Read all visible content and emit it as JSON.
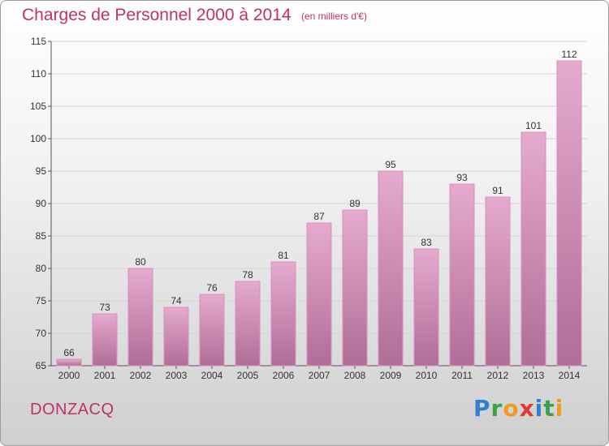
{
  "title": "Charges de Personnel 2000 à 2014",
  "subtitle": "(en milliers d'€)",
  "town": "DONZACQ",
  "logo": {
    "p": "P",
    "r": "r",
    "o": "o",
    "x": "x",
    "i1": "i",
    "t": "t",
    "i2": "i"
  },
  "colors": {
    "bar_top": "#e6aacf",
    "bar_bottom": "#b06d97",
    "bar_edge": "#d791bd",
    "accent": "#c0306a"
  },
  "chart_data": {
    "type": "bar",
    "title": "Charges de Personnel 2000 à 2014",
    "subtitle": "(en milliers d'€)",
    "categories": [
      "2000",
      "2001",
      "2002",
      "2003",
      "2004",
      "2005",
      "2006",
      "2007",
      "2008",
      "2009",
      "2010",
      "2011",
      "2012",
      "2013",
      "2014"
    ],
    "values": [
      66,
      73,
      80,
      74,
      76,
      78,
      81,
      87,
      89,
      95,
      83,
      93,
      91,
      101,
      112
    ],
    "ylim": [
      65,
      115
    ],
    "yticks": [
      65,
      70,
      75,
      80,
      85,
      90,
      95,
      100,
      105,
      110,
      115
    ],
    "grid": true
  }
}
